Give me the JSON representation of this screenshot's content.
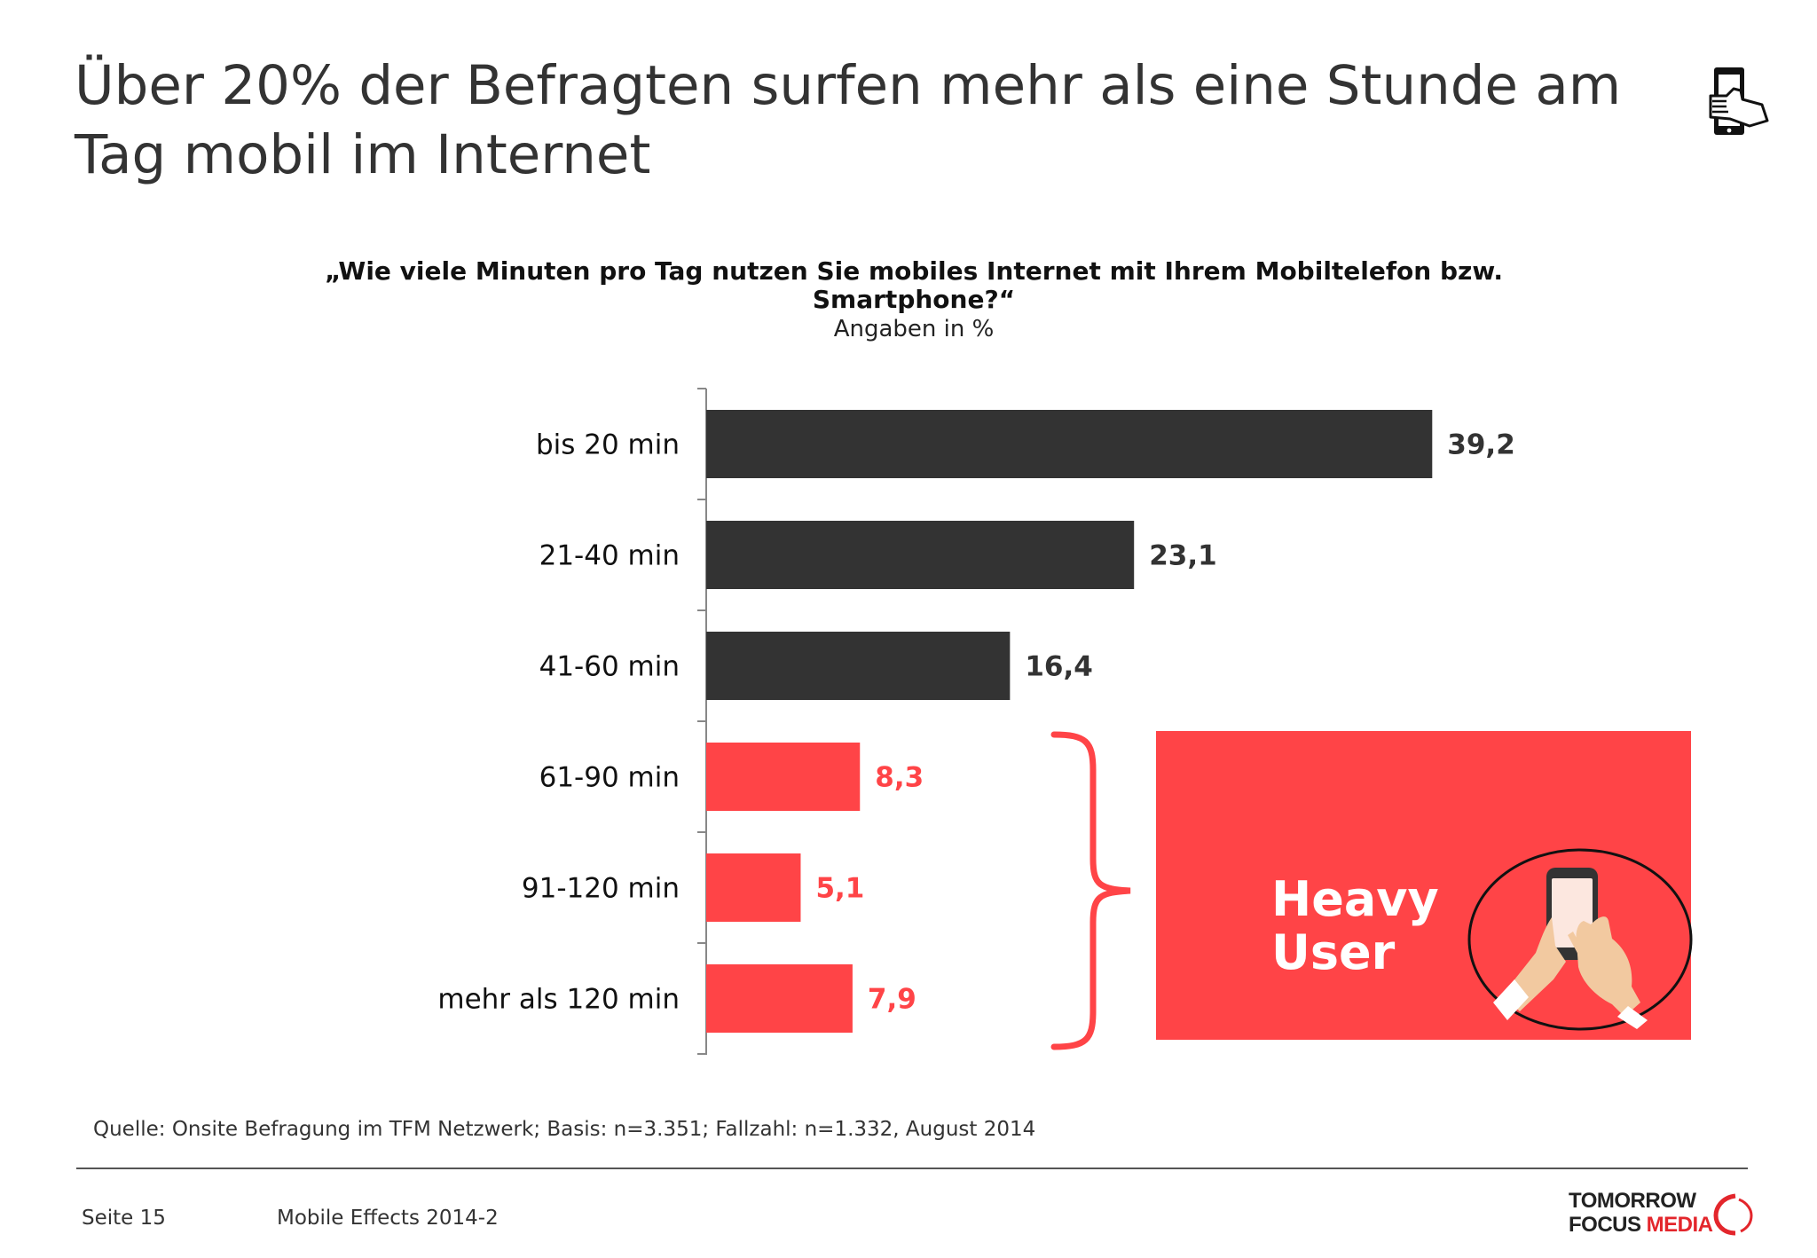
{
  "title": "Über 20% der Befragten surfen mehr als eine Stunde am Tag mobil im Internet",
  "question": "„Wie viele Minuten pro Tag nutzen Sie mobiles Internet mit Ihrem Mobiltelefon bzw. Smartphone?“",
  "unit_note": "Angaben in %",
  "icons": {
    "title_icon": "touch-phone-icon",
    "heavy_user_icon": "hands-holding-smartphone-icon",
    "group_bracket": "curly-brace-icon"
  },
  "colors": {
    "dark_bar": "#333333",
    "red_bar": "#ff4447",
    "red_label": "#ff4447",
    "dark_label": "#333333"
  },
  "chart_data": {
    "type": "bar",
    "orientation": "horizontal",
    "categories": [
      "bis 20 min",
      "21-40 min",
      "41-60 min",
      "61-90 min",
      "91-120 min",
      "mehr als 120 min"
    ],
    "values": [
      39.2,
      23.1,
      16.4,
      8.3,
      5.1,
      7.9
    ],
    "value_labels": [
      "39,2",
      "23,1",
      "16,4",
      "8,3",
      "5,1",
      "7,9"
    ],
    "highlight": [
      false,
      false,
      false,
      true,
      true,
      true
    ],
    "ylim": [
      0,
      40
    ],
    "grid": false
  },
  "callout": {
    "text_line1": "Heavy",
    "text_line2": "User"
  },
  "source": "Quelle: Onsite Befragung im TFM Netzwerk; Basis: n=3.351; Fallzahl: n=1.332, August 2014",
  "footer": {
    "page": "Seite 15",
    "report": "Mobile Effects 2014-2",
    "logo_line1": "TOMORROW",
    "logo_line2_a": "FOCUS",
    "logo_line2_b": "MEDIA"
  }
}
